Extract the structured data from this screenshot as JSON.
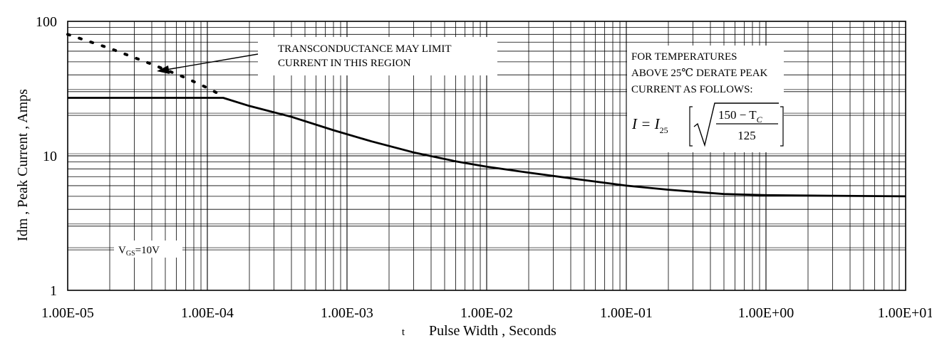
{
  "chart_data": {
    "type": "line",
    "title": "",
    "xlabel": "Pulse Width , Seconds",
    "xlabel_prefix": "t",
    "ylabel": "Idm , Peak Current , Amps",
    "x_scale": "log",
    "y_scale": "log",
    "xlim": [
      1e-05,
      10
    ],
    "ylim": [
      1,
      100
    ],
    "x_tick_labels": [
      "1.00E-05",
      "1.00E-04",
      "1.00E-03",
      "1.00E-02",
      "1.00E-01",
      "1.00E+00",
      "1.00E+01"
    ],
    "y_tick_labels": [
      "1",
      "10",
      "100"
    ],
    "grid": true,
    "series": [
      {
        "style": "solid",
        "x": [
          1e-05,
          0.00013,
          0.0002,
          0.0004,
          0.0008,
          0.0015,
          0.003,
          0.006,
          0.01,
          0.02,
          0.05,
          0.1,
          0.2,
          0.5,
          1,
          3,
          10
        ],
        "y": [
          27,
          27,
          23.5,
          19.5,
          15.5,
          12.8,
          10.6,
          9.1,
          8.3,
          7.5,
          6.6,
          6.0,
          5.6,
          5.2,
          5.1,
          5.05,
          5.0
        ]
      },
      {
        "style": "dotted",
        "x": [
          1e-05,
          2e-05,
          4e-05,
          7e-05,
          0.0001,
          0.00012
        ],
        "y": [
          80,
          63,
          48,
          38,
          32,
          29
        ]
      }
    ],
    "annotations": {
      "transconductance": [
        "TRANSCONDUCTANCE MAY LIMIT",
        "CURRENT IN THIS REGION"
      ],
      "derate": [
        "FOR TEMPERATURES",
        "ABOVE 25℃ DERATE PEAK",
        "CURRENT AS FOLLOWS:"
      ],
      "formula": {
        "lhs": "I = I",
        "lhs_sub": "25",
        "numerator": "150 − T",
        "numerator_sub": "C",
        "denominator": "125"
      },
      "vgs": {
        "main": "V",
        "sub": "GS",
        "rest": "=10V"
      }
    }
  }
}
